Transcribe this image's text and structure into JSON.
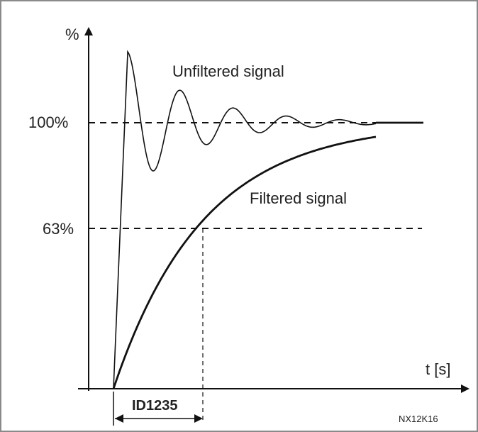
{
  "diagram": {
    "y_axis_label": "%",
    "x_axis_label": "t [s]",
    "tick_100": "100%",
    "tick_63": "63%",
    "unfiltered_label": "Unfiltered signal",
    "filtered_label": "Filtered signal",
    "time_constant_label": "ID1235",
    "figure_code": "NX12K16",
    "colors": {
      "curve": "#111111",
      "text": "#222222",
      "frame": "#8a8a8a"
    }
  }
}
